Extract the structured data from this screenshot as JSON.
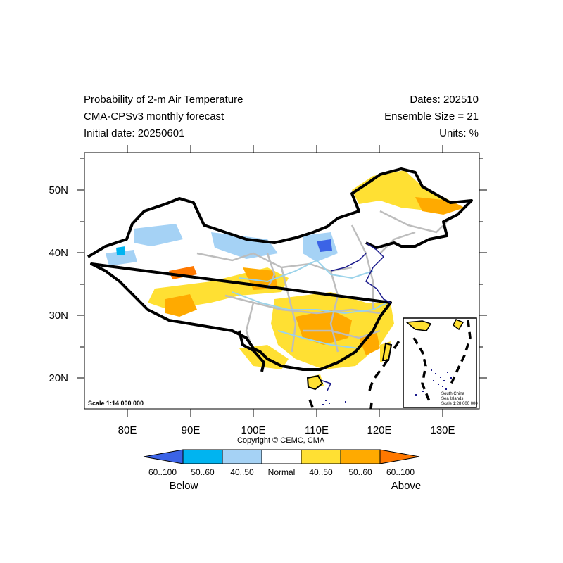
{
  "header": {
    "title_line1": "Probability of 2-m Air Temperature",
    "title_line2": "CMA-CPSv3 monthly forecast",
    "title_line3": "Initial date: 20250601",
    "dates": "Dates: 202510",
    "ensemble": "Ensemble Size = 21",
    "units": "Units: %"
  },
  "axes": {
    "x_ticks": [
      "80E",
      "90E",
      "100E",
      "110E",
      "120E",
      "130E"
    ],
    "y_ticks": [
      "50N",
      "40N",
      "30N",
      "20N"
    ]
  },
  "map": {
    "scale_label": "Scale 1:14 000 000",
    "inset": {
      "line1": "South China",
      "line2": "Sea Islands",
      "line3": "Scale 1:28 000 000"
    }
  },
  "copyright": "Copyright © CEMC, CMA",
  "legend": {
    "categories": [
      {
        "label": "60..100",
        "color": "#3b63e6"
      },
      {
        "label": "50..60",
        "color": "#00b4f0"
      },
      {
        "label": "40..50",
        "color": "#a5d2f5"
      },
      {
        "label": "Normal",
        "color": "#ffffff"
      },
      {
        "label": "40..50",
        "color": "#ffe033"
      },
      {
        "label": "50..60",
        "color": "#ffaa00"
      },
      {
        "label": "60..100",
        "color": "#ff7800"
      }
    ],
    "below_label": "Below",
    "above_label": "Above"
  }
}
